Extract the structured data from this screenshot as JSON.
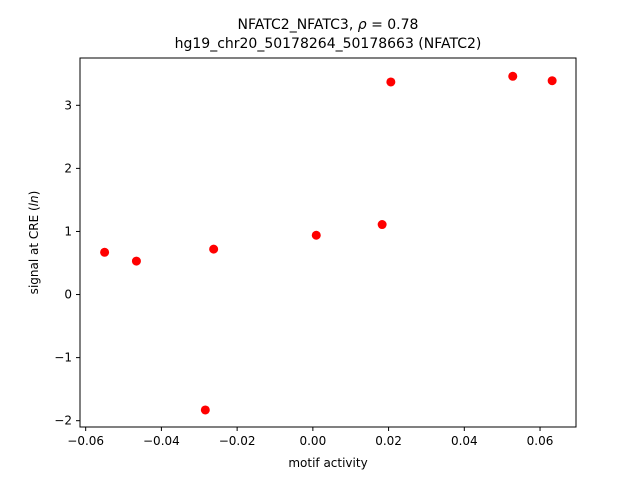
{
  "chart_data": {
    "type": "scatter",
    "title_line1_prefix": "NFATC2_NFATC3, ",
    "title_line1_rho": "ρ",
    "title_line1_suffix": " = 0.78",
    "title_line2": "hg19_chr20_50178264_50178663 (NFATC2)",
    "xlabel": "motif activity",
    "ylabel_prefix": "signal at CRE (",
    "ylabel_italic": "ln",
    "ylabel_suffix": ")",
    "xlim": [
      -0.0615,
      0.0695
    ],
    "ylim": [
      -2.1,
      3.75
    ],
    "xticks": [
      -0.06,
      -0.04,
      -0.02,
      0.0,
      0.02,
      0.04,
      0.06
    ],
    "xtick_labels": [
      "−0.06",
      "−0.04",
      "−0.02",
      "0.00",
      "0.02",
      "0.04",
      "0.06"
    ],
    "yticks": [
      -2,
      -1,
      0,
      1,
      2,
      3
    ],
    "ytick_labels": [
      "−2",
      "−1",
      "0",
      "1",
      "2",
      "3"
    ],
    "grid": false,
    "marker_color": "#ff0000",
    "points": [
      {
        "x": -0.055,
        "y": 0.67
      },
      {
        "x": -0.0466,
        "y": 0.53
      },
      {
        "x": -0.0284,
        "y": -1.83
      },
      {
        "x": -0.0262,
        "y": 0.72
      },
      {
        "x": 0.0009,
        "y": 0.94
      },
      {
        "x": 0.0183,
        "y": 1.11
      },
      {
        "x": 0.0206,
        "y": 3.37
      },
      {
        "x": 0.0528,
        "y": 3.46
      },
      {
        "x": 0.0632,
        "y": 3.39
      }
    ]
  }
}
